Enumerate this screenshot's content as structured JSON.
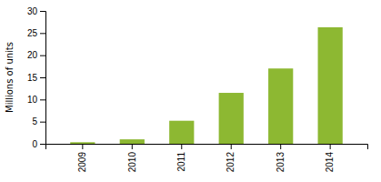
{
  "chart_data": {
    "type": "bar",
    "categories": [
      "2009",
      "2010",
      "2011",
      "2012",
      "2013",
      "2014"
    ],
    "values": [
      0.35,
      1.0,
      5.2,
      11.5,
      17.0,
      26.3
    ],
    "color": "#8db832",
    "ylabel": "Millions of units",
    "ylim": [
      0,
      30
    ],
    "yticks": [
      0,
      5,
      10,
      15,
      20,
      25,
      30
    ],
    "grid": false
  }
}
